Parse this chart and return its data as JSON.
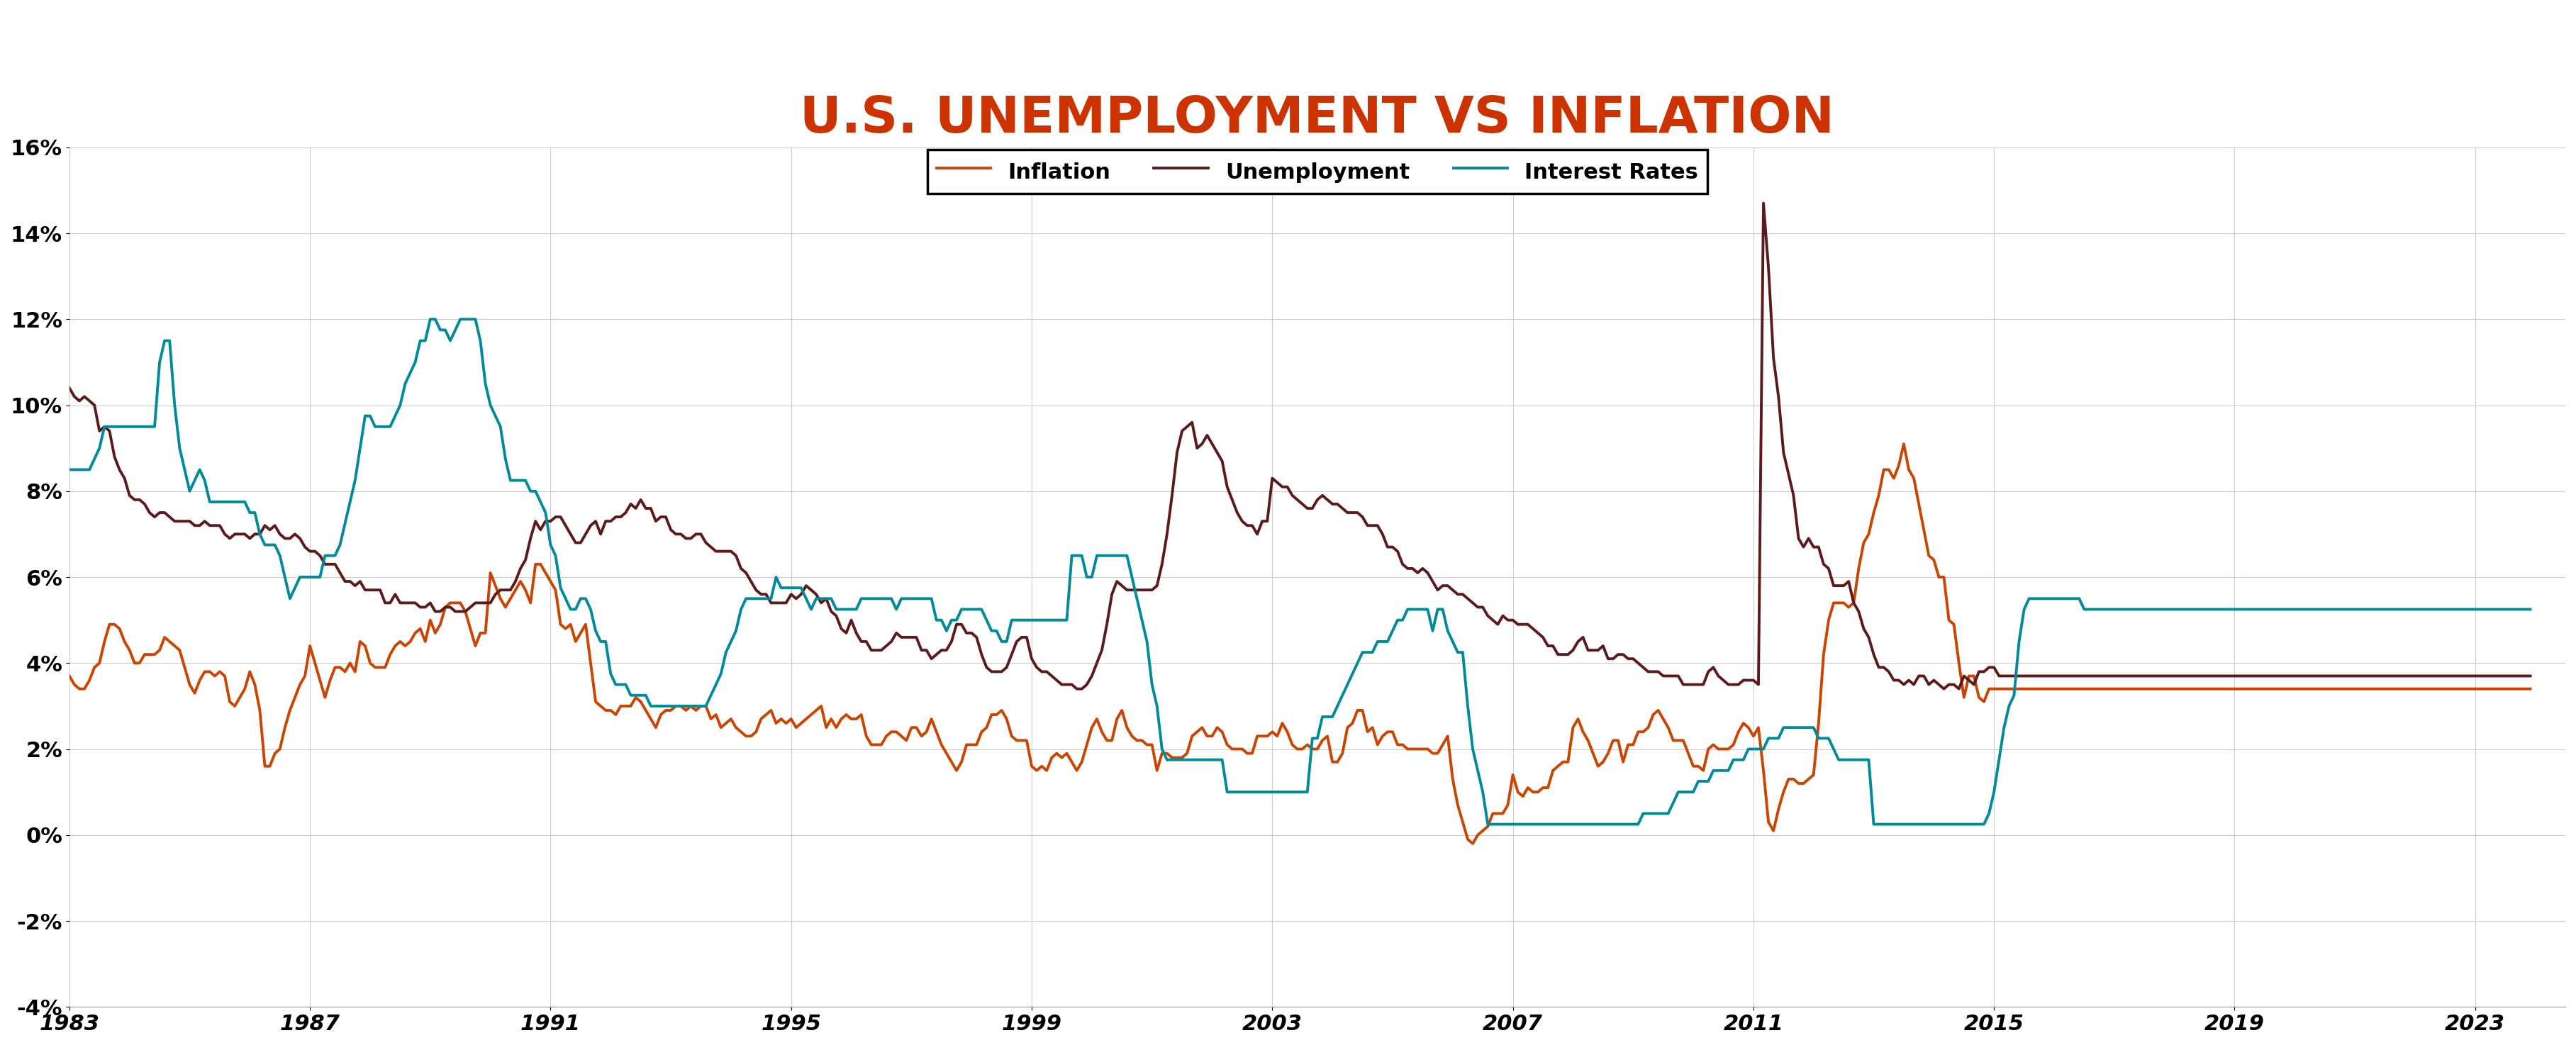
{
  "title": "U.S. UNEMPLOYMENT VS INFLATION",
  "title_color": "#CC3300",
  "title_fontsize": 52,
  "legend_entries": [
    "Inflation",
    "Unemployment",
    "Interest Rates"
  ],
  "inflation_color": "#CC4400",
  "unemployment_color": "#5C1A1A",
  "interest_color": "#008B9A",
  "line_width": 2.8,
  "background_color": "#FFFFFF",
  "grid_color": "#CCCCCC",
  "ylim": [
    -4,
    16
  ],
  "yticks": [
    -4,
    -2,
    0,
    2,
    4,
    6,
    8,
    10,
    12,
    14,
    16
  ],
  "ytick_labels": [
    "-4%",
    "-2%",
    "0%",
    "2%",
    "4%",
    "6%",
    "8%",
    "10%",
    "12%",
    "14%",
    "16%"
  ],
  "xticks": [
    1983,
    1987,
    1991,
    1995,
    1999,
    2003,
    2007,
    2011,
    2015,
    2019,
    2023
  ],
  "tick_fontsize": 22,
  "legend_fontsize": 22,
  "inflation": [
    3.7,
    3.5,
    3.4,
    3.4,
    3.6,
    3.9,
    4.0,
    4.5,
    4.9,
    4.9,
    4.8,
    4.5,
    4.3,
    4.0,
    4.0,
    4.2,
    4.2,
    4.2,
    4.3,
    4.6,
    4.5,
    4.4,
    4.3,
    3.9,
    3.5,
    3.3,
    3.6,
    3.8,
    3.8,
    3.7,
    3.8,
    3.7,
    3.1,
    3.0,
    3.2,
    3.4,
    3.8,
    3.5,
    2.9,
    1.6,
    1.6,
    1.9,
    2.0,
    2.5,
    2.9,
    3.2,
    3.5,
    3.7,
    4.4,
    4.0,
    3.6,
    3.2,
    3.6,
    3.9,
    3.9,
    3.8,
    4.0,
    3.8,
    4.5,
    4.4,
    4.0,
    3.9,
    3.9,
    3.9,
    4.2,
    4.4,
    4.5,
    4.4,
    4.5,
    4.7,
    4.8,
    4.5,
    5.0,
    4.7,
    4.9,
    5.3,
    5.4,
    5.4,
    5.4,
    5.2,
    4.8,
    4.4,
    4.7,
    4.7,
    6.1,
    5.8,
    5.5,
    5.3,
    5.5,
    5.7,
    5.9,
    5.7,
    5.4,
    6.3,
    6.3,
    6.1,
    5.9,
    5.7,
    4.9,
    4.8,
    4.9,
    4.5,
    4.7,
    4.9,
    4.0,
    3.1,
    3.0,
    2.9,
    2.9,
    2.8,
    3.0,
    3.0,
    3.0,
    3.2,
    3.1,
    2.9,
    2.7,
    2.5,
    2.8,
    2.9,
    2.9,
    3.0,
    3.0,
    2.9,
    3.0,
    2.9,
    3.0,
    3.0,
    2.7,
    2.8,
    2.5,
    2.6,
    2.7,
    2.5,
    2.4,
    2.3,
    2.3,
    2.4,
    2.7,
    2.8,
    2.9,
    2.6,
    2.7,
    2.6,
    2.7,
    2.5,
    2.6,
    2.7,
    2.8,
    2.9,
    3.0,
    2.5,
    2.7,
    2.5,
    2.7,
    2.8,
    2.7,
    2.7,
    2.8,
    2.3,
    2.1,
    2.1,
    2.1,
    2.3,
    2.4,
    2.4,
    2.3,
    2.2,
    2.5,
    2.5,
    2.3,
    2.4,
    2.7,
    2.4,
    2.1,
    1.9,
    1.7,
    1.5,
    1.7,
    2.1,
    2.1,
    2.1,
    2.4,
    2.5,
    2.8,
    2.8,
    2.9,
    2.7,
    2.3,
    2.2,
    2.2,
    2.2,
    1.6,
    1.5,
    1.6,
    1.5,
    1.8,
    1.9,
    1.8,
    1.9,
    1.7,
    1.5,
    1.7,
    2.1,
    2.5,
    2.7,
    2.4,
    2.2,
    2.2,
    2.7,
    2.9,
    2.5,
    2.3,
    2.2,
    2.2,
    2.1,
    2.1,
    1.5,
    1.9,
    1.9,
    1.8,
    1.8,
    1.8,
    1.9,
    2.3,
    2.4,
    2.5,
    2.3,
    2.3,
    2.5,
    2.4,
    2.1,
    2.0,
    2.0,
    2.0,
    1.9,
    1.9,
    2.3,
    2.3,
    2.3,
    2.4,
    2.3,
    2.6,
    2.4,
    2.1,
    2.0,
    2.0,
    2.1,
    2.0,
    2.0,
    2.2,
    2.3,
    1.7,
    1.7,
    1.9,
    2.5,
    2.6,
    2.9,
    2.9,
    2.4,
    2.5,
    2.1,
    2.3,
    2.4,
    2.4,
    2.1,
    2.1,
    2.0,
    2.0,
    2.0,
    2.0,
    2.0,
    1.9,
    1.9,
    2.1,
    2.3,
    1.3,
    0.7,
    0.3,
    -0.1,
    -0.2,
    0.0,
    0.1,
    0.2,
    0.5,
    0.5,
    0.5,
    0.7,
    1.4,
    1.0,
    0.9,
    1.1,
    1.0,
    1.0,
    1.1,
    1.1,
    1.5,
    1.6,
    1.7,
    1.7,
    2.5,
    2.7,
    2.4,
    2.2,
    1.9,
    1.6,
    1.7,
    1.9,
    2.2,
    2.2,
    1.7,
    2.1,
    2.1,
    2.4,
    2.4,
    2.5,
    2.8,
    2.9,
    2.7,
    2.5,
    2.2,
    2.2,
    2.2,
    1.9,
    1.6,
    1.6,
    1.5,
    2.0,
    2.1,
    2.0,
    2.0,
    2.0,
    2.1,
    2.4,
    2.6,
    2.5,
    2.3,
    2.5,
    1.5,
    0.3,
    0.1,
    0.6,
    1.0,
    1.3,
    1.3,
    1.2,
    1.2,
    1.3,
    1.4,
    2.6,
    4.2,
    5.0,
    5.4,
    5.4,
    5.4,
    5.3,
    5.4,
    6.2,
    6.8,
    7.0,
    7.5,
    7.9,
    8.5,
    8.5,
    8.3,
    8.6,
    9.1,
    8.5,
    8.3,
    7.7,
    7.1,
    6.5,
    6.4,
    6.0,
    6.0,
    5.0,
    4.9,
    4.0,
    3.2,
    3.7,
    3.7,
    3.2,
    3.1,
    3.4
  ],
  "unemployment": [
    10.4,
    10.2,
    10.1,
    10.2,
    10.1,
    10.0,
    9.4,
    9.5,
    9.4,
    8.8,
    8.5,
    8.3,
    7.9,
    7.8,
    7.8,
    7.7,
    7.5,
    7.4,
    7.5,
    7.5,
    7.4,
    7.3,
    7.3,
    7.3,
    7.3,
    7.2,
    7.2,
    7.3,
    7.2,
    7.2,
    7.2,
    7.0,
    6.9,
    7.0,
    7.0,
    7.0,
    6.9,
    7.0,
    7.0,
    7.2,
    7.1,
    7.2,
    7.0,
    6.9,
    6.9,
    7.0,
    6.9,
    6.7,
    6.6,
    6.6,
    6.5,
    6.3,
    6.3,
    6.3,
    6.1,
    5.9,
    5.9,
    5.8,
    5.9,
    5.7,
    5.7,
    5.7,
    5.7,
    5.4,
    5.4,
    5.6,
    5.4,
    5.4,
    5.4,
    5.4,
    5.3,
    5.3,
    5.4,
    5.2,
    5.2,
    5.3,
    5.3,
    5.2,
    5.2,
    5.2,
    5.3,
    5.4,
    5.4,
    5.4,
    5.4,
    5.6,
    5.7,
    5.7,
    5.7,
    5.9,
    6.2,
    6.4,
    6.9,
    7.3,
    7.1,
    7.3,
    7.3,
    7.4,
    7.4,
    7.2,
    7.0,
    6.8,
    6.8,
    7.0,
    7.2,
    7.3,
    7.0,
    7.3,
    7.3,
    7.4,
    7.4,
    7.5,
    7.7,
    7.6,
    7.8,
    7.6,
    7.6,
    7.3,
    7.4,
    7.4,
    7.1,
    7.0,
    7.0,
    6.9,
    6.9,
    7.0,
    7.0,
    6.8,
    6.7,
    6.6,
    6.6,
    6.6,
    6.6,
    6.5,
    6.2,
    6.1,
    5.9,
    5.7,
    5.6,
    5.6,
    5.4,
    5.4,
    5.4,
    5.4,
    5.6,
    5.5,
    5.6,
    5.8,
    5.7,
    5.6,
    5.4,
    5.5,
    5.2,
    5.1,
    4.8,
    4.7,
    5.0,
    4.7,
    4.5,
    4.5,
    4.3,
    4.3,
    4.3,
    4.4,
    4.5,
    4.7,
    4.6,
    4.6,
    4.6,
    4.6,
    4.3,
    4.3,
    4.1,
    4.2,
    4.3,
    4.3,
    4.5,
    4.9,
    4.9,
    4.7,
    4.7,
    4.6,
    4.2,
    3.9,
    3.8,
    3.8,
    3.8,
    3.9,
    4.2,
    4.5,
    4.6,
    4.6,
    4.1,
    3.9,
    3.8,
    3.8,
    3.7,
    3.6,
    3.5,
    3.5,
    3.5,
    3.4,
    3.4,
    3.5,
    3.7,
    4.0,
    4.3,
    4.9,
    5.6,
    5.9,
    5.8,
    5.7,
    5.7,
    5.7,
    5.7,
    5.7,
    5.7,
    5.8,
    6.3,
    7.0,
    7.9,
    8.9,
    9.4,
    9.5,
    9.6,
    9.0,
    9.1,
    9.3,
    9.1,
    8.9,
    8.7,
    8.1,
    7.8,
    7.5,
    7.3,
    7.2,
    7.2,
    7.0,
    7.3,
    7.3,
    8.3,
    8.2,
    8.1,
    8.1,
    7.9,
    7.8,
    7.7,
    7.6,
    7.6,
    7.8,
    7.9,
    7.8,
    7.7,
    7.7,
    7.6,
    7.5,
    7.5,
    7.5,
    7.4,
    7.2,
    7.2,
    7.2,
    7.0,
    6.7,
    6.7,
    6.6,
    6.3,
    6.2,
    6.2,
    6.1,
    6.2,
    6.1,
    5.9,
    5.7,
    5.8,
    5.8,
    5.7,
    5.6,
    5.6,
    5.5,
    5.4,
    5.3,
    5.3,
    5.1,
    5.0,
    4.9,
    5.1,
    5.0,
    5.0,
    4.9,
    4.9,
    4.9,
    4.8,
    4.7,
    4.6,
    4.4,
    4.4,
    4.2,
    4.2,
    4.2,
    4.3,
    4.5,
    4.6,
    4.3,
    4.3,
    4.3,
    4.4,
    4.1,
    4.1,
    4.2,
    4.2,
    4.1,
    4.1,
    4.0,
    3.9,
    3.8,
    3.8,
    3.8,
    3.7,
    3.7,
    3.7,
    3.7,
    3.5,
    3.5,
    3.5,
    3.5,
    3.5,
    3.8,
    3.9,
    3.7,
    3.6,
    3.5,
    3.5,
    3.5,
    3.6,
    3.6,
    3.6,
    3.5,
    14.7,
    13.2,
    11.1,
    10.2,
    8.9,
    8.4,
    7.9,
    6.9,
    6.7,
    6.9,
    6.7,
    6.7,
    6.3,
    6.2,
    5.8,
    5.8,
    5.8,
    5.9,
    5.4,
    5.2,
    4.8,
    4.6,
    4.2,
    3.9,
    3.9,
    3.8,
    3.6,
    3.6,
    3.5,
    3.6,
    3.5,
    3.7,
    3.7,
    3.5,
    3.6,
    3.5,
    3.4,
    3.5,
    3.5,
    3.4,
    3.7,
    3.6,
    3.5,
    3.8,
    3.8,
    3.9,
    3.9,
    3.7
  ],
  "interest_rates": [
    8.5,
    8.5,
    8.5,
    8.5,
    8.5,
    8.75,
    9.0,
    9.5,
    9.5,
    9.5,
    9.5,
    9.5,
    9.5,
    9.5,
    9.5,
    9.5,
    9.5,
    9.5,
    11.0,
    11.5,
    11.5,
    10.0,
    9.0,
    8.5,
    8.0,
    8.25,
    8.5,
    8.25,
    7.75,
    7.75,
    7.75,
    7.75,
    7.75,
    7.75,
    7.75,
    7.75,
    7.5,
    7.5,
    7.0,
    6.75,
    6.75,
    6.75,
    6.5,
    6.0,
    5.5,
    5.75,
    6.0,
    6.0,
    6.0,
    6.0,
    6.0,
    6.5,
    6.5,
    6.5,
    6.75,
    7.25,
    7.75,
    8.25,
    9.0,
    9.75,
    9.75,
    9.5,
    9.5,
    9.5,
    9.5,
    9.75,
    10.0,
    10.5,
    10.75,
    11.0,
    11.5,
    11.5,
    12.0,
    12.0,
    11.75,
    11.75,
    11.5,
    11.75,
    12.0,
    12.0,
    12.0,
    12.0,
    11.5,
    10.5,
    10.0,
    9.75,
    9.5,
    8.75,
    8.25,
    8.25,
    8.25,
    8.25,
    8.0,
    8.0,
    7.75,
    7.5,
    6.75,
    6.5,
    5.75,
    5.5,
    5.25,
    5.25,
    5.5,
    5.5,
    5.25,
    4.75,
    4.5,
    4.5,
    3.75,
    3.5,
    3.5,
    3.5,
    3.25,
    3.25,
    3.25,
    3.25,
    3.0,
    3.0,
    3.0,
    3.0,
    3.0,
    3.0,
    3.0,
    3.0,
    3.0,
    3.0,
    3.0,
    3.0,
    3.25,
    3.5,
    3.75,
    4.25,
    4.5,
    4.75,
    5.25,
    5.5,
    5.5,
    5.5,
    5.5,
    5.5,
    5.5,
    6.0,
    5.75,
    5.75,
    5.75,
    5.75,
    5.75,
    5.5,
    5.25,
    5.5,
    5.5,
    5.5,
    5.5,
    5.25,
    5.25,
    5.25,
    5.25,
    5.25,
    5.5,
    5.5,
    5.5,
    5.5,
    5.5,
    5.5,
    5.5,
    5.25,
    5.5,
    5.5,
    5.5,
    5.5,
    5.5,
    5.5,
    5.5,
    5.0,
    5.0,
    4.75,
    5.0,
    5.0,
    5.25,
    5.25,
    5.25,
    5.25,
    5.25,
    5.0,
    4.75,
    4.75,
    4.5,
    4.5,
    5.0,
    5.0,
    5.0,
    5.0,
    5.0,
    5.0,
    5.0,
    5.0,
    5.0,
    5.0,
    5.0,
    5.0,
    6.5,
    6.5,
    6.5,
    6.0,
    6.0,
    6.5,
    6.5,
    6.5,
    6.5,
    6.5,
    6.5,
    6.5,
    6.0,
    5.5,
    5.0,
    4.5,
    3.5,
    3.0,
    2.0,
    1.75,
    1.75,
    1.75,
    1.75,
    1.75,
    1.75,
    1.75,
    1.75,
    1.75,
    1.75,
    1.75,
    1.75,
    1.0,
    1.0,
    1.0,
    1.0,
    1.0,
    1.0,
    1.0,
    1.0,
    1.0,
    1.0,
    1.0,
    1.0,
    1.0,
    1.0,
    1.0,
    1.0,
    1.0,
    2.25,
    2.25,
    2.75,
    2.75,
    2.75,
    3.0,
    3.25,
    3.5,
    3.75,
    4.0,
    4.25,
    4.25,
    4.25,
    4.5,
    4.5,
    4.5,
    4.75,
    5.0,
    5.0,
    5.25,
    5.25,
    5.25,
    5.25,
    5.25,
    4.75,
    5.25,
    5.25,
    4.75,
    4.5,
    4.25,
    4.25,
    3.0,
    2.0,
    1.5,
    1.0,
    0.25,
    0.25,
    0.25,
    0.25,
    0.25,
    0.25,
    0.25,
    0.25,
    0.25,
    0.25,
    0.25,
    0.25,
    0.25,
    0.25,
    0.25,
    0.25,
    0.25,
    0.25,
    0.25,
    0.25,
    0.25,
    0.25,
    0.25,
    0.25,
    0.25,
    0.25,
    0.25,
    0.25,
    0.25,
    0.25,
    0.25,
    0.5,
    0.5,
    0.5,
    0.5,
    0.5,
    0.5,
    0.75,
    1.0,
    1.0,
    1.0,
    1.0,
    1.25,
    1.25,
    1.25,
    1.5,
    1.5,
    1.5,
    1.5,
    1.75,
    1.75,
    1.75,
    2.0,
    2.0,
    2.0,
    2.0,
    2.25,
    2.25,
    2.25,
    2.5,
    2.5,
    2.5,
    2.5,
    2.5,
    2.5,
    2.5,
    2.25,
    2.25,
    2.25,
    2.0,
    1.75,
    1.75,
    1.75,
    1.75,
    1.75,
    1.75,
    1.75,
    0.25,
    0.25,
    0.25,
    0.25,
    0.25,
    0.25,
    0.25,
    0.25,
    0.25,
    0.25,
    0.25,
    0.25,
    0.25,
    0.25,
    0.25,
    0.25,
    0.25,
    0.25,
    0.25,
    0.25,
    0.25,
    0.25,
    0.25,
    0.5,
    1.0,
    1.75,
    2.5,
    3.0,
    3.25,
    4.5,
    5.25,
    5.5,
    5.5,
    5.5,
    5.5,
    5.5,
    5.5,
    5.5,
    5.5,
    5.5,
    5.5,
    5.5,
    5.25
  ]
}
